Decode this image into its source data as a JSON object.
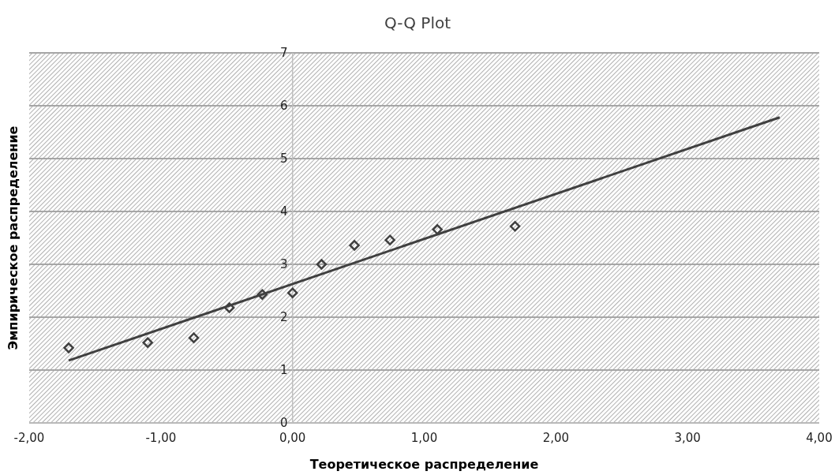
{
  "chart_data": {
    "type": "scatter",
    "title": "Q-Q Plot",
    "xlabel": "Теоретическое распределение",
    "ylabel": "Эмпирическое распределение",
    "xlim": [
      -2,
      4
    ],
    "xticks": [
      {
        "value": -2,
        "label": "-2,00"
      },
      {
        "value": -1,
        "label": "-1,00"
      },
      {
        "value": 0,
        "label": "0,00"
      },
      {
        "value": 1,
        "label": "1,00"
      },
      {
        "value": 2,
        "label": "2,00"
      },
      {
        "value": 3,
        "label": "3,00"
      },
      {
        "value": 4,
        "label": "4,00"
      }
    ],
    "ylim": [
      0,
      7
    ],
    "yticks": [
      0,
      1,
      2,
      3,
      4,
      5,
      6,
      7
    ],
    "grid": "y",
    "series": [
      {
        "type": "scatter",
        "marker": "diamond",
        "color": "#404040",
        "x": [
          -1.7,
          -1.1,
          -0.75,
          -0.48,
          -0.23,
          0.0,
          0.22,
          0.47,
          0.74,
          1.1,
          1.69
        ],
        "values": [
          1.42,
          1.52,
          1.61,
          2.18,
          2.43,
          2.46,
          3.0,
          3.36,
          3.46,
          3.66,
          3.72
        ]
      },
      {
        "type": "line",
        "marker": "none",
        "color": "#404040",
        "line_style": "solid",
        "x": [
          -1.7,
          3.7
        ],
        "values": [
          1.18,
          5.78
        ]
      }
    ]
  }
}
